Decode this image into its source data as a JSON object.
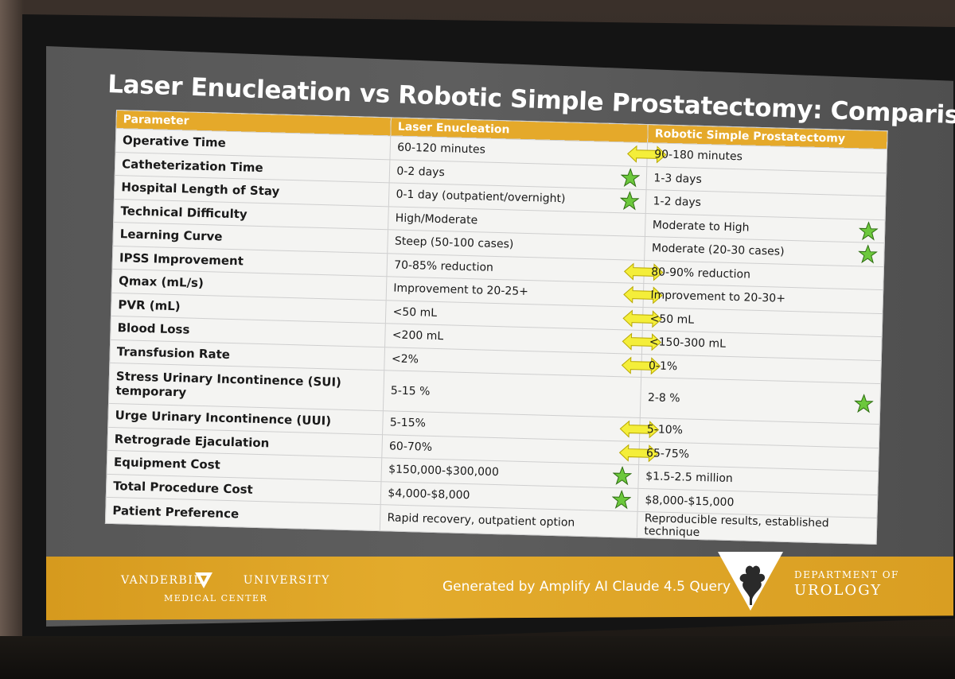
{
  "slide": {
    "title": "Laser Enucleation vs Robotic Simple Prostatectomy: Comparison",
    "table": {
      "headers": [
        "Parameter",
        "Laser Enucleation",
        "Robotic Simple Prostatectomy"
      ],
      "rows": [
        {
          "parameter": "Operative Time",
          "laser": "60-120 minutes",
          "robotic": "90-180 minutes",
          "mark": "equal-arrow"
        },
        {
          "parameter": "Catheterization Time",
          "laser": "0-2 days",
          "robotic": "1-3 days",
          "mark": "star-laser"
        },
        {
          "parameter": "Hospital Length of Stay",
          "laser": "0-1 day (outpatient/overnight)",
          "robotic": "1-2 days",
          "mark": "star-laser"
        },
        {
          "parameter": "Technical Difficulty",
          "laser": "High/Moderate",
          "robotic": "Moderate to High",
          "mark": "star-robotic"
        },
        {
          "parameter": "Learning Curve",
          "laser": "Steep (50-100 cases)",
          "robotic": "Moderate (20-30 cases)",
          "mark": "star-robotic"
        },
        {
          "parameter": "IPSS Improvement",
          "laser": "70-85% reduction",
          "robotic": "80-90% reduction",
          "mark": "equal-arrow"
        },
        {
          "parameter": "Qmax (mL/s)",
          "laser": "Improvement to 20-25+",
          "robotic": "Improvement to 20-30+",
          "mark": "equal-arrow"
        },
        {
          "parameter": "PVR (mL)",
          "laser": "<50 mL",
          "robotic": "<50 mL",
          "mark": "equal-arrow"
        },
        {
          "parameter": "Blood Loss",
          "laser": "<200 mL",
          "robotic": "<150-300 mL",
          "mark": "equal-arrow"
        },
        {
          "parameter": "Transfusion Rate",
          "laser": "<2%",
          "robotic": "0-1%",
          "mark": "equal-arrow"
        },
        {
          "parameter": "Stress Urinary Incontinence (SUI) temporary",
          "laser": "5-15 %",
          "robotic": "2-8 %",
          "mark": "star-robotic"
        },
        {
          "parameter": "Urge Urinary Incontinence (UUI)",
          "laser": "5-15%",
          "robotic": "5-10%",
          "mark": "equal-arrow"
        },
        {
          "parameter": "Retrograde Ejaculation",
          "laser": "60-70%",
          "robotic": "65-75%",
          "mark": "equal-arrow"
        },
        {
          "parameter": "Equipment Cost",
          "laser": "$150,000-$300,000",
          "robotic": "$1.5-2.5 million",
          "mark": "star-laser"
        },
        {
          "parameter": "Total Procedure Cost",
          "laser": "$4,000-$8,000",
          "robotic": "$8,000-$15,000",
          "mark": "star-laser"
        },
        {
          "parameter": "Patient Preference",
          "laser": "Rapid recovery, outpatient option",
          "robotic": "Reproducible results, established technique",
          "mark": "none"
        }
      ]
    },
    "footer": {
      "left_name": "VANDERBILT",
      "left_name_2": "UNIVERSITY",
      "left_sub": "MEDICAL CENTER",
      "center": "Generated by Amplify AI Claude 4.5 Query",
      "dept_1": "DEPARTMENT OF",
      "dept_2": "UROLOGY"
    },
    "colors": {
      "header_gold": "#e5a92a",
      "footer_gold": "#e3ab2c",
      "arrow_yellow": "#f4ee3a",
      "star_green": "#6cc83c"
    }
  }
}
